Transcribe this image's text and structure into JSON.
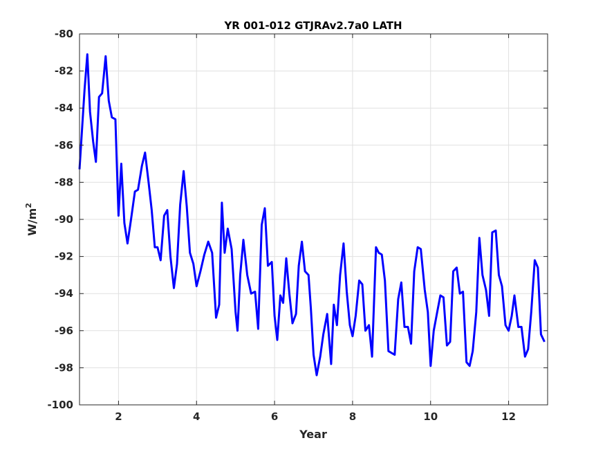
{
  "chart_data": {
    "type": "line",
    "title": "YR 001-012 GTJRAv2.7a0 LATH",
    "xlabel": "Year",
    "ylabel_base": "W/m",
    "ylabel_exp": "2",
    "xlim": [
      1,
      13
    ],
    "ylim": [
      -100,
      -80
    ],
    "xticks": [
      2,
      4,
      6,
      8,
      10,
      12
    ],
    "xtick_labels": [
      "2",
      "4",
      "6",
      "8",
      "10",
      "12"
    ],
    "yticks": [
      -100,
      -98,
      -96,
      -94,
      -92,
      -90,
      -88,
      -86,
      -84,
      -82,
      -80
    ],
    "ytick_labels": [
      "-100",
      "-98",
      "-96",
      "-94",
      "-92",
      "-90",
      "-88",
      "-86",
      "-84",
      "-82",
      "-80"
    ],
    "grid": true,
    "colors": {
      "series": "#0000ff",
      "grid": "#e0e0e0",
      "axis": "#262626"
    },
    "series": [
      {
        "values": [
          [
            1.0,
            -87.3
          ],
          [
            1.07,
            -85.0
          ],
          [
            1.13,
            -83.0
          ],
          [
            1.2,
            -81.1
          ],
          [
            1.27,
            -84.2
          ],
          [
            1.35,
            -85.8
          ],
          [
            1.42,
            -86.9
          ],
          [
            1.5,
            -83.4
          ],
          [
            1.58,
            -83.2
          ],
          [
            1.67,
            -81.2
          ],
          [
            1.75,
            -83.6
          ],
          [
            1.83,
            -84.5
          ],
          [
            1.92,
            -84.6
          ],
          [
            2.0,
            -89.8
          ],
          [
            2.07,
            -87.0
          ],
          [
            2.15,
            -90.2
          ],
          [
            2.23,
            -91.3
          ],
          [
            2.32,
            -90.0
          ],
          [
            2.42,
            -88.5
          ],
          [
            2.5,
            -88.4
          ],
          [
            2.6,
            -87.1
          ],
          [
            2.68,
            -86.4
          ],
          [
            2.77,
            -88.0
          ],
          [
            2.85,
            -89.5
          ],
          [
            2.93,
            -91.5
          ],
          [
            3.0,
            -91.5
          ],
          [
            3.08,
            -92.2
          ],
          [
            3.17,
            -89.8
          ],
          [
            3.25,
            -89.5
          ],
          [
            3.33,
            -92.0
          ],
          [
            3.42,
            -93.7
          ],
          [
            3.5,
            -92.4
          ],
          [
            3.58,
            -89.2
          ],
          [
            3.67,
            -87.4
          ],
          [
            3.75,
            -89.3
          ],
          [
            3.83,
            -91.8
          ],
          [
            3.92,
            -92.4
          ],
          [
            4.0,
            -93.6
          ],
          [
            4.1,
            -92.8
          ],
          [
            4.2,
            -91.9
          ],
          [
            4.3,
            -91.2
          ],
          [
            4.4,
            -91.8
          ],
          [
            4.5,
            -95.3
          ],
          [
            4.58,
            -94.6
          ],
          [
            4.65,
            -89.1
          ],
          [
            4.72,
            -91.8
          ],
          [
            4.8,
            -90.5
          ],
          [
            4.9,
            -91.6
          ],
          [
            5.0,
            -95.0
          ],
          [
            5.05,
            -96.0
          ],
          [
            5.12,
            -93.0
          ],
          [
            5.2,
            -91.1
          ],
          [
            5.3,
            -93.0
          ],
          [
            5.4,
            -94.0
          ],
          [
            5.5,
            -93.9
          ],
          [
            5.58,
            -95.9
          ],
          [
            5.67,
            -90.3
          ],
          [
            5.75,
            -89.4
          ],
          [
            5.83,
            -92.5
          ],
          [
            5.93,
            -92.3
          ],
          [
            6.0,
            -95.2
          ],
          [
            6.07,
            -96.5
          ],
          [
            6.15,
            -94.1
          ],
          [
            6.22,
            -94.5
          ],
          [
            6.3,
            -92.1
          ],
          [
            6.38,
            -94.0
          ],
          [
            6.46,
            -95.6
          ],
          [
            6.55,
            -95.1
          ],
          [
            6.62,
            -92.5
          ],
          [
            6.7,
            -91.2
          ],
          [
            6.78,
            -92.8
          ],
          [
            6.87,
            -93.0
          ],
          [
            6.93,
            -94.8
          ],
          [
            7.0,
            -97.3
          ],
          [
            7.08,
            -98.4
          ],
          [
            7.17,
            -97.4
          ],
          [
            7.25,
            -96.2
          ],
          [
            7.35,
            -95.1
          ],
          [
            7.45,
            -97.8
          ],
          [
            7.52,
            -94.6
          ],
          [
            7.6,
            -95.7
          ],
          [
            7.68,
            -93.0
          ],
          [
            7.77,
            -91.3
          ],
          [
            7.85,
            -93.9
          ],
          [
            7.93,
            -95.7
          ],
          [
            8.0,
            -96.3
          ],
          [
            8.08,
            -95.2
          ],
          [
            8.17,
            -93.3
          ],
          [
            8.25,
            -93.5
          ],
          [
            8.33,
            -96.0
          ],
          [
            8.42,
            -95.7
          ],
          [
            8.5,
            -97.4
          ],
          [
            8.6,
            -91.5
          ],
          [
            8.67,
            -91.8
          ],
          [
            8.75,
            -91.9
          ],
          [
            8.83,
            -93.3
          ],
          [
            8.92,
            -97.1
          ],
          [
            9.0,
            -97.2
          ],
          [
            9.08,
            -97.3
          ],
          [
            9.17,
            -94.3
          ],
          [
            9.25,
            -93.4
          ],
          [
            9.33,
            -95.8
          ],
          [
            9.42,
            -95.8
          ],
          [
            9.5,
            -96.7
          ],
          [
            9.58,
            -92.8
          ],
          [
            9.67,
            -91.5
          ],
          [
            9.75,
            -91.6
          ],
          [
            9.85,
            -93.8
          ],
          [
            9.93,
            -95.0
          ],
          [
            10.0,
            -97.9
          ],
          [
            10.08,
            -96.0
          ],
          [
            10.17,
            -95.0
          ],
          [
            10.25,
            -94.1
          ],
          [
            10.33,
            -94.2
          ],
          [
            10.42,
            -96.8
          ],
          [
            10.5,
            -96.6
          ],
          [
            10.58,
            -92.8
          ],
          [
            10.67,
            -92.6
          ],
          [
            10.75,
            -94.0
          ],
          [
            10.83,
            -93.9
          ],
          [
            10.92,
            -97.7
          ],
          [
            11.0,
            -97.9
          ],
          [
            11.08,
            -97.1
          ],
          [
            11.17,
            -95.0
          ],
          [
            11.25,
            -91.0
          ],
          [
            11.33,
            -93.0
          ],
          [
            11.42,
            -93.8
          ],
          [
            11.5,
            -95.2
          ],
          [
            11.58,
            -90.7
          ],
          [
            11.67,
            -90.6
          ],
          [
            11.75,
            -93.0
          ],
          [
            11.83,
            -93.6
          ],
          [
            11.92,
            -95.7
          ],
          [
            12.0,
            -96.0
          ],
          [
            12.08,
            -95.2
          ],
          [
            12.15,
            -94.1
          ],
          [
            12.25,
            -95.8
          ],
          [
            12.33,
            -95.8
          ],
          [
            12.42,
            -97.4
          ],
          [
            12.5,
            -97.0
          ],
          [
            12.58,
            -95.0
          ],
          [
            12.67,
            -92.2
          ],
          [
            12.75,
            -92.6
          ],
          [
            12.83,
            -96.2
          ],
          [
            12.92,
            -96.6
          ]
        ]
      }
    ]
  }
}
